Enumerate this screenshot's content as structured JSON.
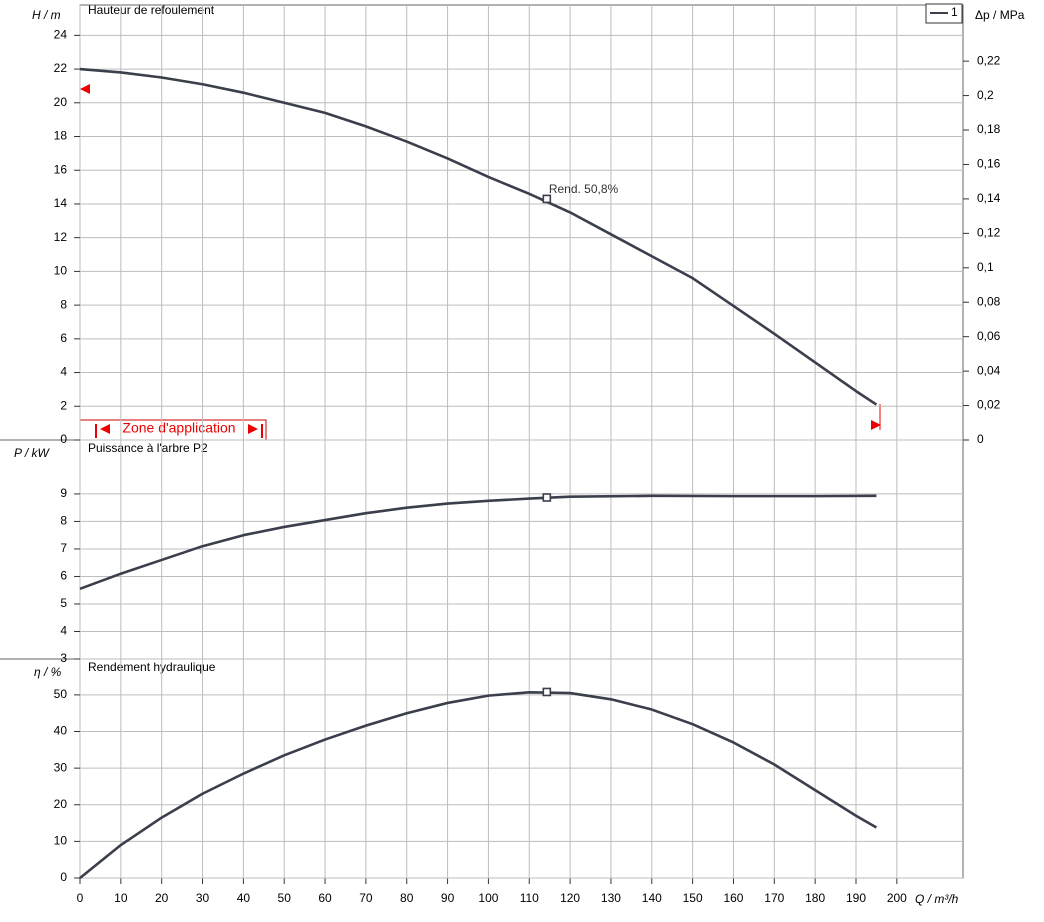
{
  "chart_data": [
    {
      "type": "line",
      "title": "Hauteur de refoulement",
      "ylabel": "H / m",
      "y2label": "Δp / MPa",
      "x": [
        0,
        10,
        20,
        30,
        40,
        50,
        60,
        70,
        80,
        90,
        100,
        110,
        120,
        130,
        140,
        150,
        160,
        170,
        180,
        190,
        195
      ],
      "series": [
        {
          "name": "1",
          "color": "#3a3f4b",
          "values": [
            22.0,
            21.8,
            21.5,
            21.1,
            20.6,
            20.0,
            19.4,
            18.6,
            17.7,
            16.7,
            15.6,
            14.6,
            13.5,
            12.2,
            10.9,
            9.6,
            7.95,
            6.3,
            4.6,
            2.9,
            2.1
          ]
        }
      ],
      "marker": {
        "x": 114.3,
        "y": 14.3,
        "label": "Rend. 50,8%"
      },
      "zone_label": "Zone d'application",
      "xlim": [
        0,
        216.2
      ],
      "ylim": [
        0,
        25.8
      ],
      "yticks": [
        0,
        2,
        4,
        6,
        8,
        10,
        12,
        14,
        16,
        18,
        20,
        22,
        24
      ],
      "y2lim": [
        0,
        0.2526
      ],
      "y2ticks": [
        0,
        {
          "value": 0.02,
          "label": "0,02"
        },
        {
          "value": 0.04,
          "label": "0,04"
        },
        {
          "value": 0.06,
          "label": "0,06"
        },
        {
          "value": 0.08,
          "label": "0,08"
        },
        {
          "value": 0.1,
          "label": "0,1"
        },
        {
          "value": 0.12,
          "label": "0,12"
        },
        {
          "value": 0.14,
          "label": "0,14"
        },
        {
          "value": 0.16,
          "label": "0,16"
        },
        {
          "value": 0.18,
          "label": "0,18"
        },
        {
          "value": 0.2,
          "label": "0,2"
        },
        {
          "value": 0.22,
          "label": "0,22"
        }
      ],
      "grid": true
    },
    {
      "type": "line",
      "title": "Puissance à l'arbre P2",
      "ylabel": "P / kW",
      "x": [
        0,
        10,
        20,
        30,
        40,
        50,
        60,
        70,
        80,
        90,
        100,
        110,
        120,
        140,
        160,
        180,
        195
      ],
      "series": [
        {
          "color": "#3a3f4b",
          "values": [
            5.55,
            6.1,
            6.6,
            7.1,
            7.5,
            7.8,
            8.05,
            8.3,
            8.5,
            8.65,
            8.75,
            8.83,
            8.9,
            8.93,
            8.92,
            8.92,
            8.93
          ]
        }
      ],
      "marker": {
        "x": 114.3,
        "y": 8.87
      },
      "xlim": [
        0,
        216.2
      ],
      "ylim": [
        3,
        10.96
      ],
      "yticks": [
        3,
        4,
        5,
        6,
        7,
        8,
        9
      ],
      "grid": true
    },
    {
      "type": "line",
      "title": "Rendement hydraulique",
      "ylabel": "η / %",
      "xlabel": "Q / m³/h",
      "x": [
        0,
        10,
        20,
        30,
        40,
        50,
        60,
        70,
        80,
        90,
        100,
        110,
        120,
        130,
        140,
        150,
        160,
        170,
        180,
        190,
        195
      ],
      "series": [
        {
          "color": "#3a3f4b",
          "values": [
            0,
            9,
            16.5,
            23,
            28.5,
            33.5,
            37.8,
            41.6,
            45,
            47.8,
            49.8,
            50.7,
            50.5,
            48.8,
            46,
            42,
            37,
            31,
            24,
            17,
            13.8
          ]
        }
      ],
      "marker": {
        "x": 114.3,
        "y": 50.8
      },
      "xlim": [
        0,
        216.2
      ],
      "ylim": [
        0,
        59.8
      ],
      "yticks": [
        0,
        10,
        20,
        30,
        40,
        50
      ],
      "xticks": [
        0,
        10,
        20,
        30,
        40,
        50,
        60,
        70,
        80,
        90,
        100,
        110,
        120,
        130,
        140,
        150,
        160,
        170,
        180,
        190,
        200
      ],
      "grid": true
    }
  ]
}
